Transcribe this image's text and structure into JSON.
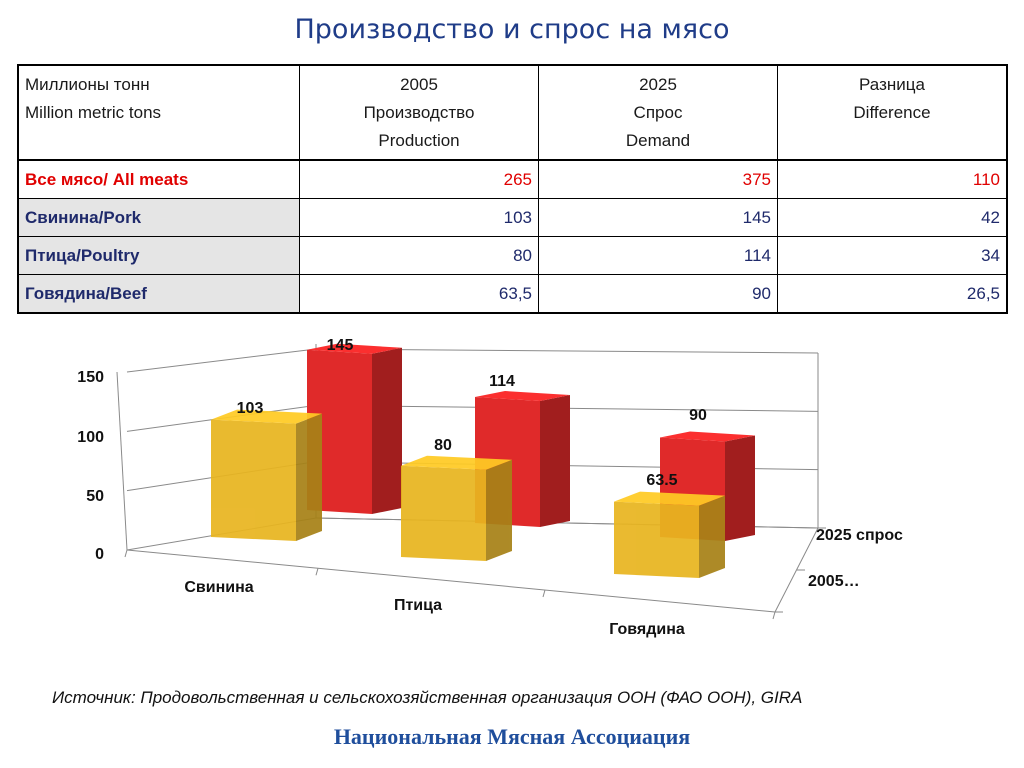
{
  "title": "Производство и спрос на мясо",
  "table": {
    "header": {
      "col0": [
        "Миллионы тонн",
        "Million metric tons"
      ],
      "col1": [
        "2005",
        "Производство",
        "Production"
      ],
      "col2": [
        "2025",
        "Спрос",
        "Demand"
      ],
      "col3": [
        "Разница",
        "Difference"
      ]
    },
    "rows": [
      {
        "label": "Все мясо/ All meats",
        "production": "265",
        "demand": "375",
        "difference": "110"
      },
      {
        "label": "Свинина/Pork",
        "production": "103",
        "demand": "145",
        "difference": "42"
      },
      {
        "label": "Птица/Poultry",
        "production": "80",
        "demand": "114",
        "difference": "34"
      },
      {
        "label": "Говядина/Beef",
        "production": "63,5",
        "demand": "90",
        "difference": "26,5"
      }
    ]
  },
  "chart_data": {
    "type": "bar",
    "categories": [
      "Свинина",
      "Птица",
      "Говядина"
    ],
    "series": [
      {
        "name": "2005…",
        "values": [
          103,
          80,
          63.5
        ],
        "labels": [
          "103",
          "80",
          "63.5"
        ],
        "color": "#e8b520"
      },
      {
        "name": "2025 спрос",
        "values": [
          145,
          114,
          90
        ],
        "labels": [
          "145",
          "114",
          "90"
        ],
        "color": "#e02a2a"
      }
    ],
    "yticks": [
      "0",
      "50",
      "100",
      "150"
    ],
    "ylim": [
      0,
      150
    ],
    "grid": true,
    "legend": "right",
    "style": "3d-column"
  },
  "source": "Источник: Продовольственная и сельскохозяйственная организация ООН (ФАО ООН), GIRA",
  "association": "Национальная Мясная Ассоциация"
}
